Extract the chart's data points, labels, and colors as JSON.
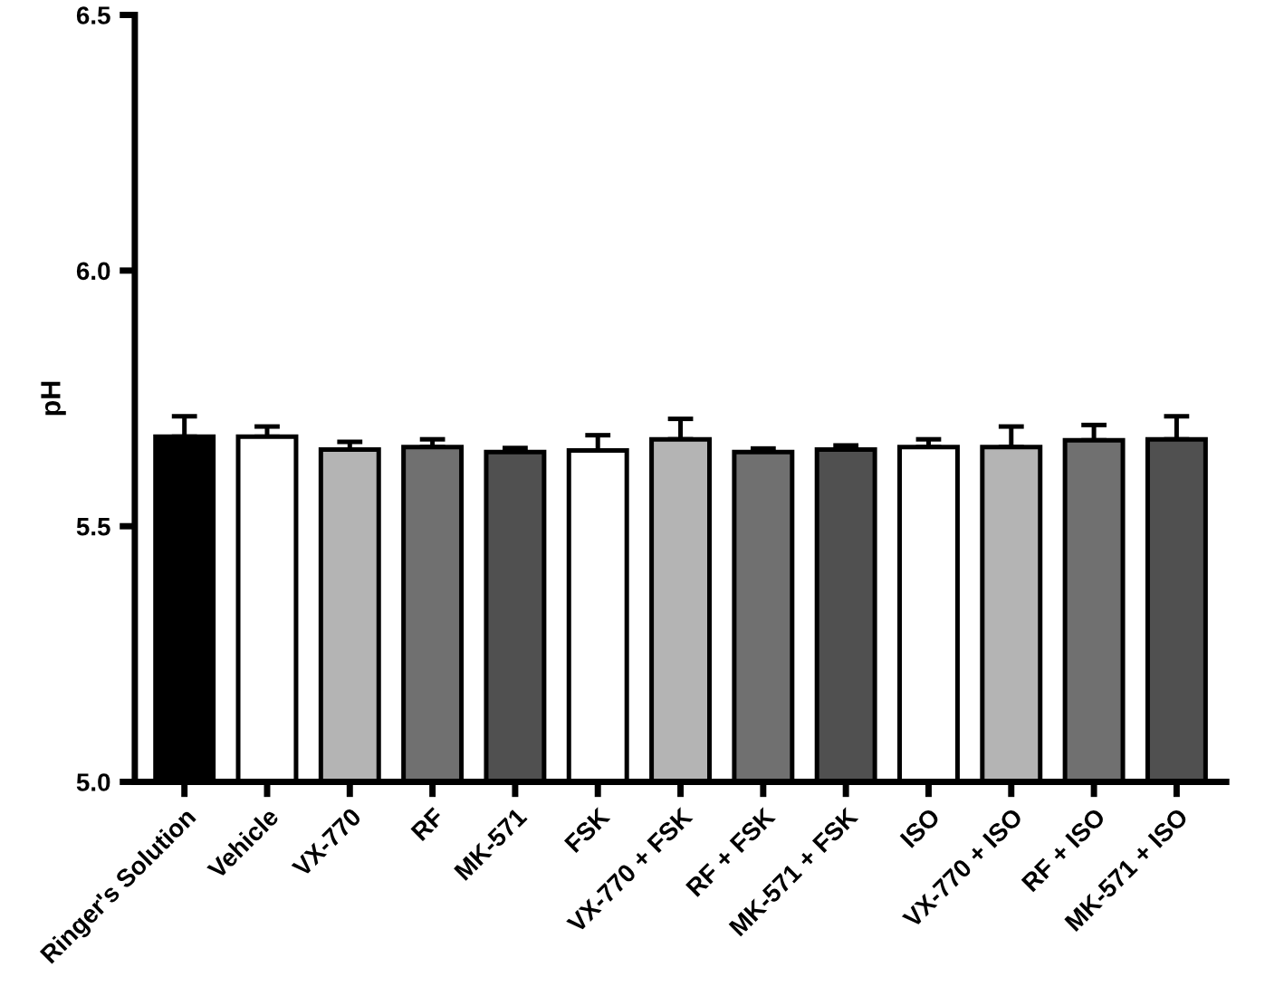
{
  "chart_data": {
    "type": "bar",
    "ylabel": "pH",
    "categories": [
      "Ringer's Solution",
      "Vehicle",
      "VX-770",
      "RF",
      "MK-571",
      "FSK",
      "VX-770 + FSK",
      "RF + FSK",
      "MK-571 + FSK",
      "ISO",
      "VX-770 + ISO",
      "RF + ISO",
      "MK-571 + ISO"
    ],
    "values": [
      5.675,
      5.675,
      5.65,
      5.655,
      5.645,
      5.648,
      5.67,
      5.645,
      5.65,
      5.655,
      5.655,
      5.668,
      5.67
    ],
    "colors": [
      "#000000",
      "#ffffff",
      "#b4b4b4",
      "#707070",
      "#505050",
      "#ffffff",
      "#b4b4b4",
      "#707070",
      "#505050",
      "#ffffff",
      "#b4b4b4",
      "#707070",
      "#505050"
    ],
    "errors": [
      [
        5.675,
        5.715
      ],
      [
        5.675,
        5.695
      ],
      [
        5.65,
        5.665
      ],
      [
        5.655,
        5.67
      ],
      [
        5.645,
        5.653
      ],
      [
        5.648,
        5.678
      ],
      [
        5.67,
        5.71
      ],
      [
        5.645,
        5.652
      ],
      [
        5.65,
        5.658
      ],
      [
        5.655,
        5.67
      ],
      [
        5.655,
        5.695
      ],
      [
        5.668,
        5.698
      ],
      [
        5.67,
        5.715
      ]
    ],
    "ylim": [
      5,
      6.5
    ],
    "yticks": [
      {
        "value": 5,
        "label": "5.0"
      },
      {
        "value": 5.5,
        "label": "5.5"
      },
      {
        "value": 6,
        "label": "6.0"
      },
      {
        "value": 6.5,
        "label": "6.5"
      }
    ],
    "grid": false,
    "legend": false
  }
}
